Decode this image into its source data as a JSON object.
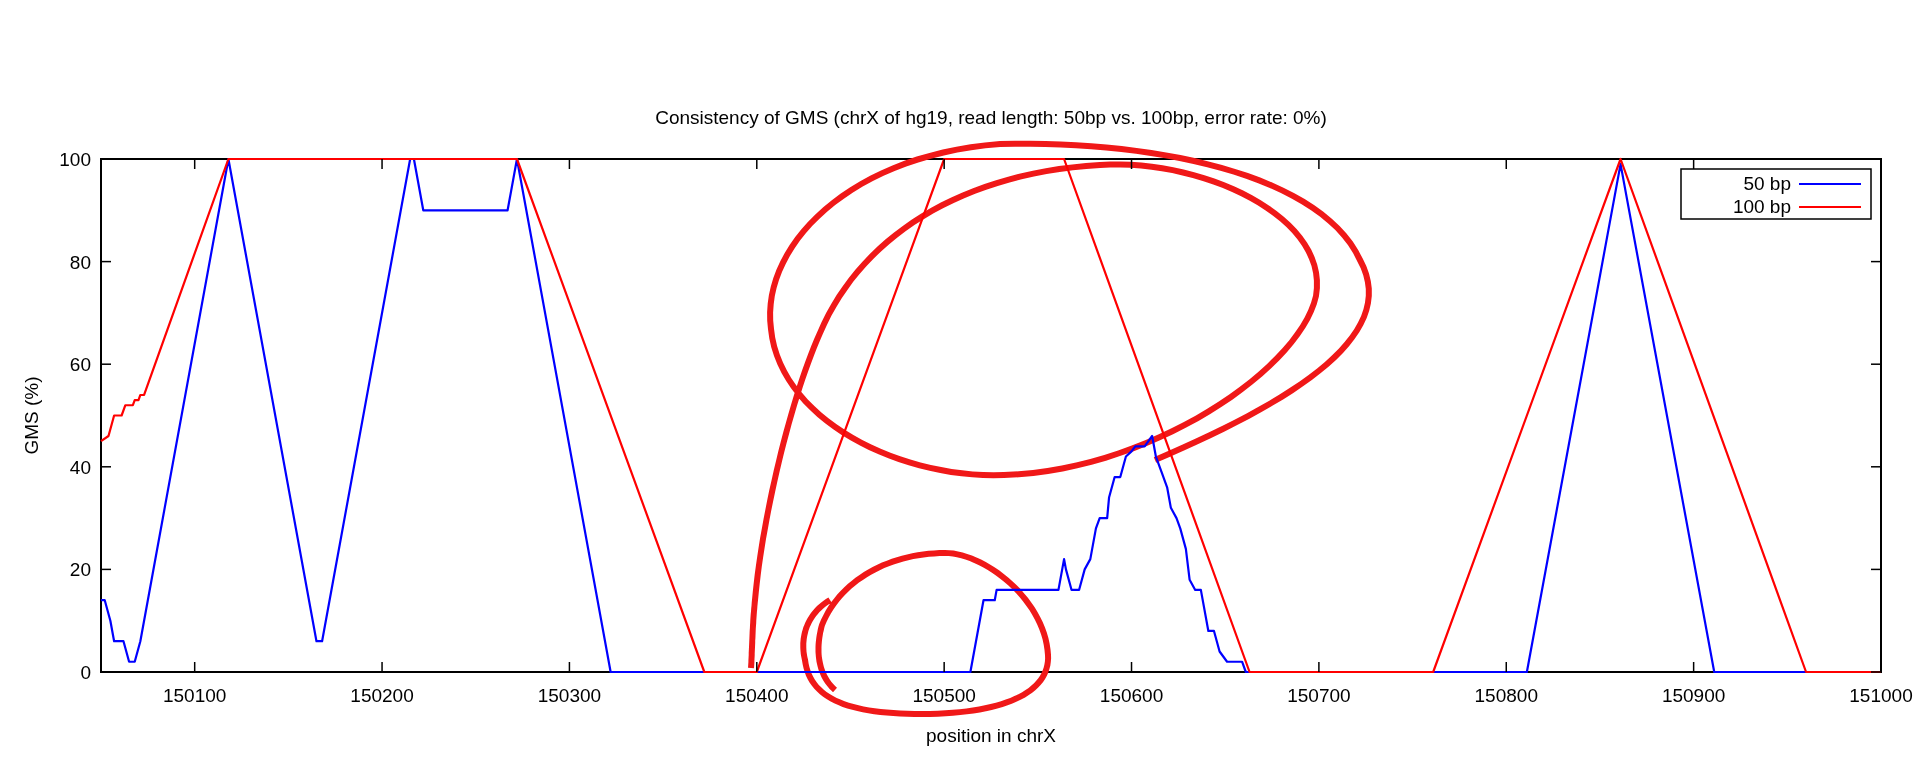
{
  "chart_data": {
    "type": "line",
    "title": "Consistency of GMS (chrX of hg19, read length: 50bp vs. 100bp, error rate: 0%)",
    "xlabel": "position in chrX",
    "ylabel": "GMS (%)",
    "xlim": [
      150050,
      151000
    ],
    "xticks": [
      150100,
      150200,
      150300,
      150400,
      150500,
      150600,
      150700,
      150800,
      150900,
      151000
    ],
    "ylim": [
      0,
      100
    ],
    "yticks": [
      0,
      20,
      40,
      60,
      80,
      100
    ],
    "grid": false,
    "legend": "top right",
    "line_style": "solid",
    "marker": "none",
    "series": [
      {
        "name": "50 bp",
        "color": "#0000ff",
        "x": [
          150050,
          150052,
          150055,
          150057,
          150062,
          150065,
          150068,
          150071,
          150118,
          150165,
          150168,
          150215,
          150217,
          150222,
          150267,
          150272,
          150322,
          150514,
          150521,
          150527,
          150528,
          150561,
          150564,
          150565,
          150568,
          150572,
          150575,
          150578,
          150581,
          150583,
          150587,
          150588,
          150591,
          150594,
          150597,
          150600,
          150602,
          150607,
          150611,
          150613,
          150616,
          150619,
          150621,
          150624,
          150626,
          150629,
          150631,
          150634,
          150637,
          150641,
          150644,
          150647,
          150651,
          150659,
          150661,
          150811,
          150861,
          150911,
          151000
        ],
        "values": [
          14,
          14,
          10,
          6,
          6,
          2,
          2,
          6,
          100,
          6,
          6,
          100,
          100,
          90,
          90,
          100,
          0,
          0,
          14,
          14,
          16,
          16,
          22,
          20,
          16,
          16,
          20,
          22,
          28,
          30,
          30,
          34,
          38,
          38,
          42,
          43,
          44,
          44,
          46,
          42,
          39,
          36,
          32,
          30,
          28,
          24,
          18,
          16,
          16,
          8,
          8,
          4,
          2,
          2,
          0,
          0,
          99,
          0,
          0
        ]
      },
      {
        "name": "100 bp",
        "color": "#ff0000",
        "x": [
          150050,
          150054,
          150057,
          150061,
          150063,
          150067,
          150068,
          150070,
          150071,
          150073,
          150118,
          150272,
          150372,
          150400,
          150500,
          150564,
          150663,
          150761,
          150861,
          150960,
          151000
        ],
        "values": [
          45,
          46,
          50,
          50,
          52,
          52,
          53,
          53,
          54,
          54,
          100,
          100,
          0,
          0,
          100,
          100,
          0,
          0,
          100,
          0,
          0
        ]
      }
    ]
  }
}
